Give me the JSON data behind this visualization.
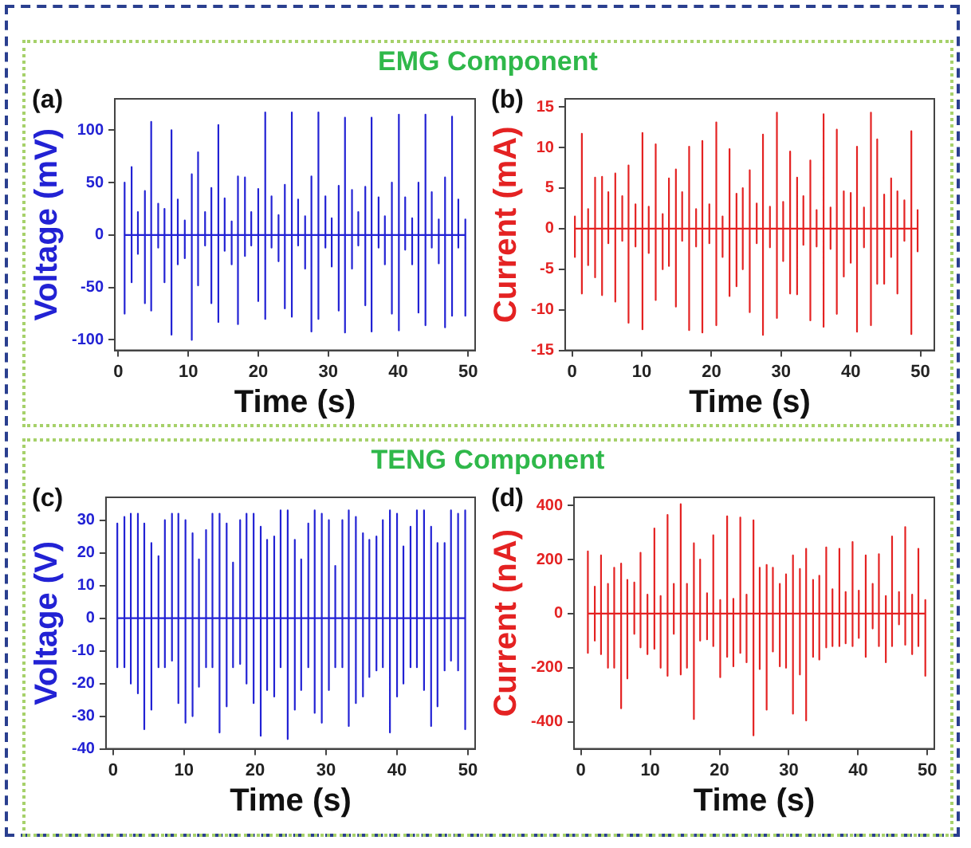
{
  "chart_data": [
    {
      "type": "line",
      "title": "EMG Component",
      "annotations": [
        "(a)"
      ],
      "xlabel": "Time (s)",
      "ylabel": "Voltage (mV)",
      "xlim": [
        -0.5,
        51
      ],
      "ylim": [
        -110,
        130
      ],
      "xticks": [
        0,
        10,
        20,
        30,
        40,
        50
      ],
      "yticks": [
        -100,
        -50,
        0,
        50,
        100
      ],
      "grid": false,
      "x": [
        0.9,
        0.9,
        0.9,
        0.9,
        1.9,
        1.9,
        1.9,
        1.9,
        2.8,
        2.8,
        2.8,
        2.8,
        3.8,
        3.8,
        3.8,
        3.8,
        4.7,
        4.7,
        4.7,
        4.7,
        5.7,
        5.7,
        5.7,
        5.7,
        6.6,
        6.6,
        6.6,
        6.6,
        7.6,
        7.6,
        7.6,
        7.6,
        8.5,
        8.5,
        8.5,
        8.5,
        9.5,
        9.5,
        9.5,
        9.5,
        10.5,
        10.5,
        10.5,
        10.5,
        11.4,
        11.4,
        11.4,
        11.4,
        12.4,
        12.4,
        12.4,
        12.4,
        13.3,
        13.3,
        13.3,
        13.3,
        14.3,
        14.3,
        14.3,
        14.3,
        15.2,
        15.2,
        15.2,
        15.2,
        16.2,
        16.2,
        16.2,
        16.2,
        17.1,
        17.1,
        17.1,
        17.1,
        18.1,
        18.1,
        18.1,
        18.1,
        19,
        19,
        19,
        19,
        20,
        20,
        20,
        20,
        21,
        21,
        21,
        21,
        21.9,
        21.9,
        21.9,
        21.9,
        22.9,
        22.9,
        22.9,
        22.9,
        23.8,
        23.8,
        23.8,
        23.8,
        24.8,
        24.8,
        24.8,
        24.8,
        25.7,
        25.7,
        25.7,
        25.7,
        26.7,
        26.7,
        26.7,
        26.7,
        27.6,
        27.6,
        27.6,
        27.6,
        28.6,
        28.6,
        28.6,
        28.6,
        29.6,
        29.6,
        29.6,
        29.6,
        30.5,
        30.5,
        30.5,
        30.5,
        31.5,
        31.5,
        31.5,
        31.5,
        32.4,
        32.4,
        32.4,
        32.4,
        33.4,
        33.4,
        33.4,
        33.4,
        34.3,
        34.3,
        34.3,
        34.3,
        35.3,
        35.3,
        35.3,
        35.3,
        36.2,
        36.2,
        36.2,
        36.2,
        37.2,
        37.2,
        37.2,
        37.2,
        38.1,
        38.1,
        38.1,
        38.1,
        39.1,
        39.1,
        39.1,
        39.1,
        40.1,
        40.1,
        40.1,
        40.1,
        41,
        41,
        41,
        41,
        42,
        42,
        42,
        42,
        42.9,
        42.9,
        42.9,
        42.9,
        43.9,
        43.9,
        43.9,
        43.9,
        44.8,
        44.8,
        44.8,
        44.8,
        45.8,
        45.8,
        45.8,
        45.8,
        46.7,
        46.7,
        46.7,
        46.7,
        47.7,
        47.7,
        47.7,
        47.7,
        48.6,
        48.6,
        48.6,
        48.6,
        49.6,
        49.6,
        49.6,
        49.6
      ],
      "series": [
        {
          "color": "#2222d4",
          "values": [
            0,
            50,
            -75,
            0,
            0,
            65,
            -45,
            0,
            0,
            22,
            -18,
            0,
            0,
            42,
            -65,
            0,
            0,
            108,
            -72,
            0,
            0,
            30,
            -12,
            0,
            0,
            25,
            -45,
            0,
            0,
            100,
            -95,
            0,
            0,
            34,
            -28,
            0,
            0,
            14,
            -22,
            0,
            0,
            58,
            -100,
            0,
            0,
            79,
            -48,
            0,
            0,
            22,
            -10,
            0,
            0,
            45,
            -65,
            0,
            0,
            105,
            -83,
            0,
            0,
            35,
            -15,
            0,
            0,
            13,
            -28,
            0,
            0,
            56,
            -85,
            0,
            0,
            55,
            -20,
            0,
            0,
            22,
            -10,
            0,
            0,
            44,
            -63,
            0,
            0,
            117,
            -80,
            0,
            0,
            37,
            -12,
            0,
            0,
            19,
            -25,
            0,
            0,
            48,
            -70,
            0,
            0,
            117,
            -78,
            0,
            0,
            34,
            -10,
            0,
            0,
            18,
            -32,
            0,
            0,
            56,
            -92,
            0,
            0,
            117,
            -80,
            0,
            0,
            37,
            -12,
            0,
            0,
            16,
            -30,
            0,
            0,
            47,
            -72,
            0,
            0,
            112,
            -93,
            0,
            0,
            43,
            -32,
            0,
            0,
            22,
            -10,
            0,
            0,
            46,
            -67,
            0,
            0,
            112,
            -92,
            0,
            0,
            36,
            -12,
            0,
            0,
            18,
            -28,
            0,
            0,
            50,
            -75,
            0,
            0,
            115,
            -91,
            0,
            0,
            36,
            -14,
            0,
            0,
            16,
            -28,
            0,
            0,
            50,
            -74,
            0,
            0,
            115,
            -86,
            0,
            0,
            41,
            -12,
            0,
            0,
            15,
            -27,
            0,
            0,
            55,
            -88,
            0,
            0,
            113,
            -77,
            0,
            0,
            34,
            -12,
            0,
            0,
            15,
            -77,
            0
          ]
        }
      ]
    },
    {
      "type": "line",
      "annotations": [
        "(b)"
      ],
      "xlabel": "Time (s)",
      "ylabel": "Current (mA)",
      "xlim": [
        -1,
        52
      ],
      "ylim": [
        -15,
        16
      ],
      "xticks": [
        0,
        10,
        20,
        30,
        40,
        50
      ],
      "yticks": [
        -15,
        -10,
        -5,
        0,
        5,
        10,
        15
      ],
      "grid": false,
      "x": [
        0.4,
        0.4,
        0.4,
        0.4,
        1.4,
        1.4,
        1.4,
        1.4,
        2.3,
        2.3,
        2.3,
        2.3,
        3.3,
        3.3,
        3.3,
        3.3,
        4.3,
        4.3,
        4.3,
        4.3,
        5.2,
        5.2,
        5.2,
        5.2,
        6.2,
        6.2,
        6.2,
        6.2,
        7.2,
        7.2,
        7.2,
        7.2,
        8.1,
        8.1,
        8.1,
        8.1,
        9.1,
        9.1,
        9.1,
        9.1,
        10.1,
        10.1,
        10.1,
        10.1,
        11,
        11,
        11,
        11,
        12,
        12,
        12,
        12,
        13,
        13,
        13,
        13,
        13.9,
        13.9,
        13.9,
        13.9,
        14.9,
        14.9,
        14.9,
        14.9,
        15.8,
        15.8,
        15.8,
        15.8,
        16.8,
        16.8,
        16.8,
        16.8,
        17.8,
        17.8,
        17.8,
        17.8,
        18.7,
        18.7,
        18.7,
        18.7,
        19.7,
        19.7,
        19.7,
        19.7,
        20.7,
        20.7,
        20.7,
        20.7,
        21.6,
        21.6,
        21.6,
        21.6,
        22.6,
        22.6,
        22.6,
        22.6,
        23.6,
        23.6,
        23.6,
        23.6,
        24.5,
        24.5,
        24.5,
        24.5,
        25.5,
        25.5,
        25.5,
        25.5,
        26.5,
        26.5,
        26.5,
        26.5,
        27.4,
        27.4,
        27.4,
        27.4,
        28.4,
        28.4,
        28.4,
        28.4,
        29.4,
        29.4,
        29.4,
        29.4,
        30.3,
        30.3,
        30.3,
        30.3,
        31.3,
        31.3,
        31.3,
        31.3,
        32.3,
        32.3,
        32.3,
        32.3,
        33.2,
        33.2,
        33.2,
        33.2,
        34.2,
        34.2,
        34.2,
        34.2,
        35.1,
        35.1,
        35.1,
        35.1,
        36.1,
        36.1,
        36.1,
        36.1,
        37.1,
        37.1,
        37.1,
        37.1,
        38,
        38,
        38,
        38,
        39,
        39,
        39,
        39,
        40,
        40,
        40,
        40,
        40.9,
        40.9,
        40.9,
        40.9,
        41.9,
        41.9,
        41.9,
        41.9,
        42.9,
        42.9,
        42.9,
        42.9,
        43.8,
        43.8,
        43.8,
        43.8,
        44.8,
        44.8,
        44.8,
        44.8,
        45.8,
        45.8,
        45.8,
        45.8,
        46.7,
        46.7,
        46.7,
        46.7,
        47.7,
        47.7,
        47.7,
        47.7,
        48.7,
        48.7,
        48.7,
        48.7,
        49.6,
        49.6,
        49.6,
        49.6
      ],
      "series": [
        {
          "color": "#e42222",
          "values": [
            0,
            1.5,
            -3.5,
            0,
            0,
            11.7,
            -8,
            0,
            0,
            2.4,
            -4.5,
            0,
            0,
            6.3,
            -6,
            0,
            0,
            6.4,
            -8.2,
            0,
            0,
            4.5,
            -1.8,
            0,
            0,
            6.8,
            -9,
            0,
            0,
            4,
            -1.5,
            0,
            0,
            7.8,
            -11.6,
            0,
            0,
            3,
            -2.2,
            0,
            0,
            11.8,
            -12.4,
            0,
            0,
            2.7,
            -3,
            0,
            0,
            10.4,
            -8.8,
            0,
            0,
            1.8,
            -5,
            0,
            0,
            6.2,
            -4.6,
            0,
            0,
            7.3,
            -9.6,
            0,
            0,
            4.5,
            -1.5,
            0,
            0,
            10.1,
            -12.5,
            0,
            0,
            2.4,
            -2.2,
            0,
            0,
            10.8,
            -12.8,
            0,
            0,
            3,
            -1.8,
            0,
            0,
            13.1,
            -11.9,
            0,
            0,
            1.5,
            -3.5,
            0,
            0,
            9.8,
            -8.3,
            0,
            0,
            4.3,
            -7.1,
            0,
            0,
            5,
            -5,
            0,
            0,
            7.2,
            -10.3,
            0,
            0,
            3.1,
            -1.8,
            0,
            0,
            11.6,
            -13.1,
            0,
            0,
            2.7,
            -2.3,
            0,
            0,
            14.3,
            -11,
            0,
            0,
            3.3,
            -4,
            0,
            0,
            9.5,
            -8,
            0,
            0,
            6.3,
            -8.1,
            0,
            0,
            4,
            -2,
            0,
            0,
            8.4,
            -11.3,
            0,
            0,
            2.3,
            -2.2,
            0,
            0,
            14.1,
            -12.1,
            0,
            0,
            2.6,
            -2.5,
            0,
            0,
            12.2,
            -10.5,
            0,
            0,
            4.6,
            -5.9,
            0,
            0,
            4.4,
            -4.2,
            0,
            0,
            10.1,
            -12.7,
            0,
            0,
            2.6,
            -2.3,
            0,
            0,
            14.3,
            -11.9,
            0,
            0,
            11,
            -6.8,
            0,
            0,
            4.2,
            -6.8,
            0,
            0,
            6.2,
            -3.5,
            0,
            0,
            4.6,
            -8,
            0,
            0,
            3.5,
            -1.5,
            0,
            0,
            12,
            -13,
            0,
            0,
            2.3,
            -2.8,
            0
          ]
        }
      ]
    },
    {
      "type": "line",
      "title": "TENG Component",
      "annotations": [
        "(c)"
      ],
      "xlabel": "Time (s)",
      "ylabel": "Voltage (V)",
      "xlim": [
        -1,
        51
      ],
      "ylim": [
        -40,
        37
      ],
      "xticks": [
        0,
        10,
        20,
        30,
        40,
        50
      ],
      "yticks": [
        -40,
        -30,
        -20,
        -10,
        0,
        10,
        20,
        30
      ],
      "grid": false,
      "x": [
        0.6,
        0.6,
        0.6,
        0.6,
        1.6,
        1.6,
        1.6,
        1.6,
        2.5,
        2.5,
        2.5,
        2.5,
        3.5,
        3.5,
        3.5,
        3.5,
        4.4,
        4.4,
        4.4,
        4.4,
        5.4,
        5.4,
        5.4,
        5.4,
        6.4,
        6.4,
        6.4,
        6.4,
        7.3,
        7.3,
        7.3,
        7.3,
        8.3,
        8.3,
        8.3,
        8.3,
        9.2,
        9.2,
        9.2,
        9.2,
        10.2,
        10.2,
        10.2,
        10.2,
        11.2,
        11.2,
        11.2,
        11.2,
        12.1,
        12.1,
        12.1,
        12.1,
        13.1,
        13.1,
        13.1,
        13.1,
        14,
        14,
        14,
        14,
        15,
        15,
        15,
        15,
        16,
        16,
        16,
        16,
        16.9,
        16.9,
        16.9,
        16.9,
        17.9,
        17.9,
        17.9,
        17.9,
        18.8,
        18.8,
        18.8,
        18.8,
        19.8,
        19.8,
        19.8,
        19.8,
        20.8,
        20.8,
        20.8,
        20.8,
        21.7,
        21.7,
        21.7,
        21.7,
        22.7,
        22.7,
        22.7,
        22.7,
        23.6,
        23.6,
        23.6,
        23.6,
        24.6,
        24.6,
        24.6,
        24.6,
        25.6,
        25.6,
        25.6,
        25.6,
        26.5,
        26.5,
        26.5,
        26.5,
        27.5,
        27.5,
        27.5,
        27.5,
        28.4,
        28.4,
        28.4,
        28.4,
        29.4,
        29.4,
        29.4,
        29.4,
        30.4,
        30.4,
        30.4,
        30.4,
        31.3,
        31.3,
        31.3,
        31.3,
        32.3,
        32.3,
        32.3,
        32.3,
        33.2,
        33.2,
        33.2,
        33.2,
        34.2,
        34.2,
        34.2,
        34.2,
        35.2,
        35.2,
        35.2,
        35.2,
        36.1,
        36.1,
        36.1,
        36.1,
        37.1,
        37.1,
        37.1,
        37.1,
        38,
        38,
        38,
        38,
        39,
        39,
        39,
        39,
        40,
        40,
        40,
        40,
        40.9,
        40.9,
        40.9,
        40.9,
        41.9,
        41.9,
        41.9,
        41.9,
        42.8,
        42.8,
        42.8,
        42.8,
        43.8,
        43.8,
        43.8,
        43.8,
        44.8,
        44.8,
        44.8,
        44.8,
        45.7,
        45.7,
        45.7,
        45.7,
        46.7,
        46.7,
        46.7,
        46.7,
        47.6,
        47.6,
        47.6,
        47.6,
        48.6,
        48.6,
        48.6,
        48.6,
        49.6,
        49.6,
        49.6,
        49.6
      ],
      "series": [
        {
          "color": "#2222d4",
          "values": [
            0,
            29,
            -15,
            0,
            0,
            31,
            -15,
            0,
            0,
            32,
            -20,
            0,
            0,
            32,
            -23,
            0,
            0,
            29,
            -34,
            0,
            0,
            23,
            -28,
            0,
            0,
            19,
            -15,
            0,
            0,
            30,
            -15,
            0,
            0,
            32,
            -13,
            0,
            0,
            32,
            -26,
            0,
            0,
            30,
            -32,
            0,
            0,
            26,
            -30,
            0,
            0,
            18,
            -21,
            0,
            0,
            27,
            -15,
            0,
            0,
            32,
            -15,
            0,
            0,
            32,
            -35,
            0,
            0,
            29,
            -27,
            0,
            0,
            17,
            -15,
            0,
            0,
            30,
            -14,
            0,
            0,
            32,
            -20,
            0,
            0,
            32,
            -26,
            0,
            0,
            28,
            -36,
            0,
            0,
            24,
            -22,
            0,
            0,
            25,
            -24,
            0,
            0,
            33,
            -15,
            0,
            0,
            33,
            -37,
            0,
            0,
            24,
            -28,
            0,
            0,
            18,
            -22,
            0,
            0,
            29,
            -15,
            0,
            0,
            33,
            -29,
            0,
            0,
            32,
            -32,
            0,
            0,
            30,
            -22,
            0,
            0,
            16,
            -15,
            0,
            0,
            30,
            -15,
            0,
            0,
            33,
            -33,
            0,
            0,
            31,
            -26,
            0,
            0,
            26,
            -24,
            0,
            0,
            24,
            -18,
            0,
            0,
            25,
            -16,
            0,
            0,
            30,
            -15,
            0,
            0,
            33,
            -35,
            0,
            0,
            32,
            -24,
            0,
            0,
            22,
            -20,
            0,
            0,
            28,
            -15,
            0,
            0,
            33,
            -15,
            0,
            0,
            33,
            -22,
            0,
            0,
            28,
            -33,
            0,
            0,
            23,
            -27,
            0,
            0,
            23,
            -16,
            0,
            0,
            33,
            -13,
            0,
            0,
            32,
            -16,
            0,
            0,
            33,
            -34,
            0
          ]
        }
      ]
    },
    {
      "type": "line",
      "annotations": [
        "(d)"
      ],
      "xlabel": "Time (s)",
      "ylabel": "Current (nA)",
      "xlim": [
        -1,
        51
      ],
      "ylim": [
        -500,
        430
      ],
      "xticks": [
        0,
        10,
        20,
        30,
        40,
        50
      ],
      "yticks": [
        -400,
        -200,
        0,
        200,
        400
      ],
      "grid": false,
      "x": [
        1,
        1,
        1,
        1,
        2,
        2,
        2,
        2,
        2.9,
        2.9,
        2.9,
        2.9,
        3.9,
        3.9,
        3.9,
        3.9,
        4.8,
        4.8,
        4.8,
        4.8,
        5.8,
        5.8,
        5.8,
        5.8,
        6.7,
        6.7,
        6.7,
        6.7,
        7.7,
        7.7,
        7.7,
        7.7,
        8.6,
        8.6,
        8.6,
        8.6,
        9.6,
        9.6,
        9.6,
        9.6,
        10.6,
        10.6,
        10.6,
        10.6,
        11.5,
        11.5,
        11.5,
        11.5,
        12.5,
        12.5,
        12.5,
        12.5,
        13.4,
        13.4,
        13.4,
        13.4,
        14.4,
        14.4,
        14.4,
        14.4,
        15.3,
        15.3,
        15.3,
        15.3,
        16.3,
        16.3,
        16.3,
        16.3,
        17.2,
        17.2,
        17.2,
        17.2,
        18.2,
        18.2,
        18.2,
        18.2,
        19.1,
        19.1,
        19.1,
        19.1,
        20.1,
        20.1,
        20.1,
        20.1,
        21.1,
        21.1,
        21.1,
        21.1,
        22,
        22,
        22,
        22,
        23,
        23,
        23,
        23,
        23.9,
        23.9,
        23.9,
        23.9,
        24.9,
        24.9,
        24.9,
        24.9,
        25.8,
        25.8,
        25.8,
        25.8,
        26.8,
        26.8,
        26.8,
        26.8,
        27.7,
        27.7,
        27.7,
        27.7,
        28.7,
        28.7,
        28.7,
        28.7,
        29.6,
        29.6,
        29.6,
        29.6,
        30.6,
        30.6,
        30.6,
        30.6,
        31.6,
        31.6,
        31.6,
        31.6,
        32.5,
        32.5,
        32.5,
        32.5,
        33.5,
        33.5,
        33.5,
        33.5,
        34.4,
        34.4,
        34.4,
        34.4,
        35.4,
        35.4,
        35.4,
        35.4,
        36.3,
        36.3,
        36.3,
        36.3,
        37.3,
        37.3,
        37.3,
        37.3,
        38.2,
        38.2,
        38.2,
        38.2,
        39.2,
        39.2,
        39.2,
        39.2,
        40.1,
        40.1,
        40.1,
        40.1,
        41.1,
        41.1,
        41.1,
        41.1,
        42.1,
        42.1,
        42.1,
        42.1,
        43,
        43,
        43,
        43,
        44,
        44,
        44,
        44,
        44.9,
        44.9,
        44.9,
        44.9,
        45.9,
        45.9,
        45.9,
        45.9,
        46.8,
        46.8,
        46.8,
        46.8,
        47.8,
        47.8,
        47.8,
        47.8,
        48.7,
        48.7,
        48.7,
        48.7,
        49.7,
        49.7,
        49.7,
        49.7
      ],
      "series": [
        {
          "color": "#e42222",
          "values": [
            0,
            230,
            -145,
            0,
            0,
            100,
            -100,
            0,
            0,
            215,
            -150,
            0,
            0,
            110,
            -200,
            0,
            0,
            170,
            -200,
            0,
            0,
            185,
            -350,
            0,
            0,
            125,
            -240,
            0,
            0,
            115,
            -75,
            0,
            0,
            225,
            -125,
            0,
            0,
            70,
            -150,
            0,
            0,
            315,
            -130,
            0,
            0,
            65,
            -200,
            0,
            0,
            365,
            -230,
            0,
            0,
            110,
            -75,
            0,
            0,
            405,
            -225,
            0,
            0,
            110,
            -200,
            0,
            0,
            260,
            -390,
            0,
            0,
            200,
            -100,
            0,
            0,
            75,
            -95,
            0,
            0,
            290,
            -120,
            0,
            0,
            50,
            -235,
            0,
            0,
            360,
            -160,
            0,
            0,
            55,
            -195,
            0,
            0,
            355,
            -145,
            0,
            0,
            70,
            -180,
            0,
            0,
            345,
            -450,
            0,
            0,
            170,
            -205,
            0,
            0,
            180,
            -355,
            0,
            0,
            170,
            -140,
            0,
            0,
            110,
            -195,
            0,
            0,
            145,
            -200,
            0,
            0,
            215,
            -370,
            0,
            0,
            165,
            -225,
            0,
            0,
            240,
            -395,
            0,
            0,
            125,
            -160,
            0,
            0,
            140,
            -170,
            0,
            0,
            245,
            -125,
            0,
            0,
            90,
            -120,
            0,
            0,
            240,
            -120,
            0,
            0,
            80,
            -110,
            0,
            0,
            265,
            -120,
            0,
            0,
            85,
            -90,
            0,
            0,
            215,
            -160,
            0,
            0,
            110,
            -55,
            0,
            0,
            220,
            -120,
            0,
            0,
            65,
            -180,
            0,
            0,
            285,
            -120,
            0,
            0,
            80,
            -40,
            0,
            0,
            320,
            -115,
            0,
            0,
            70,
            -150,
            0,
            0,
            240,
            -120,
            0,
            0,
            50,
            -230,
            0
          ]
        }
      ]
    }
  ]
}
